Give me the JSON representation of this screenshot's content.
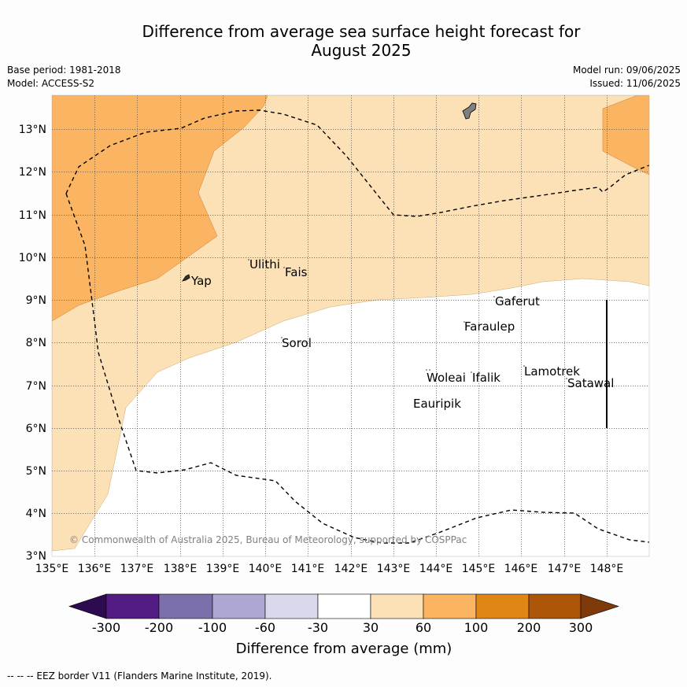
{
  "title_line1": "Difference from average sea surface height forecast for",
  "title_line2": "August 2025",
  "base_period": "Base period: 1981-2018",
  "model": "Model: ACCESS-S2",
  "model_run": "Model run: 09/06/2025",
  "issued": "Issued: 11/06/2025",
  "map": {
    "lon_labels": [
      "135°E",
      "136°E",
      "137°E",
      "138°E",
      "139°E",
      "140°E",
      "141°E",
      "142°E",
      "143°E",
      "144°E",
      "145°E",
      "146°E",
      "147°E",
      "148°E"
    ],
    "lat_labels": [
      "3°N",
      "4°N",
      "5°N",
      "6°N",
      "7°N",
      "8°N",
      "9°N",
      "10°N",
      "11°N",
      "12°N",
      "13°N"
    ],
    "places": [
      {
        "name": "Yap"
      },
      {
        "name": "Ulithi"
      },
      {
        "name": "Fais"
      },
      {
        "name": "Gaferut"
      },
      {
        "name": "Faraulep"
      },
      {
        "name": "Sorol"
      },
      {
        "name": "Woleai"
      },
      {
        "name": "Ifalik"
      },
      {
        "name": "Lamotrek"
      },
      {
        "name": "Satawal"
      },
      {
        "name": "Eauripik"
      }
    ],
    "copyright": "© Commonwealth of Australia 2025, Bureau of Meteorology, supported by COSPPac"
  },
  "colorbar": {
    "title": "Difference from average (mm)",
    "tick_labels": [
      "-300",
      "-200",
      "-100",
      "-60",
      "-30",
      "30",
      "60",
      "100",
      "200",
      "300"
    ],
    "colors": [
      "#2d0b50",
      "#521c84",
      "#7d6fab",
      "#aea7d2",
      "#d9d9ec",
      "#ffffff",
      "#fde1b6",
      "#fbb461",
      "#e08615",
      "#ad5508",
      "#7e3a09"
    ]
  },
  "footer": "-- -- -- EEZ border V11 (Flanders Marine Institute, 2019)."
}
